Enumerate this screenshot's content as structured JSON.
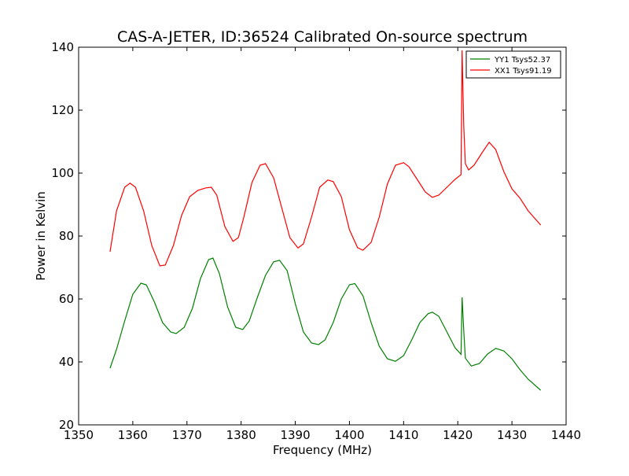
{
  "chart_data": {
    "type": "line",
    "title": "CAS-A-JETER, ID:36524 Calibrated On-source spectrum",
    "xlabel": "Frequency (MHz)",
    "ylabel": "Power in Kelvin",
    "xlim": [
      1350,
      1440
    ],
    "ylim": [
      20,
      140
    ],
    "xticks": [
      "1350",
      "1360",
      "1370",
      "1380",
      "1390",
      "1400",
      "1410",
      "1420",
      "1430",
      "1440"
    ],
    "yticks": [
      "20",
      "40",
      "60",
      "80",
      "100",
      "120",
      "140"
    ],
    "grid": false,
    "legend_position": "top-right",
    "series": [
      {
        "name": "YY1 Tsys52.37",
        "color": "#008000",
        "x": [
          1355.8,
          1357,
          1358.5,
          1360,
          1361.5,
          1362.5,
          1364,
          1365.5,
          1367,
          1368,
          1369.5,
          1371,
          1372.5,
          1374,
          1374.8,
          1376,
          1377.5,
          1379,
          1380.3,
          1381.5,
          1383,
          1384.5,
          1386,
          1387.1,
          1388.5,
          1390,
          1391.5,
          1393,
          1394.3,
          1395.5,
          1397,
          1398.5,
          1400,
          1401,
          1402.5,
          1404,
          1405.5,
          1407,
          1408.5,
          1410,
          1411.5,
          1413,
          1414.5,
          1415.3,
          1416.5,
          1418,
          1419.5,
          1420.6,
          1420.8,
          1421.1,
          1421.4,
          1422.5,
          1424,
          1425.5,
          1427,
          1428.5,
          1430,
          1431.5,
          1433,
          1435.3
        ],
        "y": [
          38,
          44,
          53,
          61.5,
          65,
          64.5,
          59,
          52.5,
          49.5,
          49,
          51,
          57,
          66.5,
          72.5,
          73,
          68,
          57.5,
          51,
          50.3,
          53,
          60.5,
          67.5,
          71.8,
          72.3,
          69,
          58.5,
          49.5,
          46,
          45.5,
          47,
          52.5,
          60,
          64.5,
          64.9,
          61,
          52.5,
          45,
          41,
          40.2,
          42,
          47,
          52.5,
          55.3,
          55.8,
          54.5,
          49.5,
          44.5,
          42.4,
          60.5,
          50,
          41.2,
          38.7,
          39.5,
          42.5,
          44.3,
          43.5,
          41,
          37.5,
          34.5,
          31
        ]
      },
      {
        "name": "XX1 Tsys91.19",
        "color": "#ff0000",
        "x": [
          1355.8,
          1357,
          1358.5,
          1359.5,
          1360.5,
          1362,
          1363.5,
          1365,
          1366,
          1367.5,
          1369,
          1370.5,
          1372,
          1373.5,
          1374.5,
          1375.5,
          1377,
          1378.5,
          1379.5,
          1380.5,
          1382,
          1383.5,
          1384.5,
          1386,
          1387.5,
          1389,
          1390.5,
          1391.5,
          1393,
          1394.5,
          1396,
          1397,
          1398.5,
          1400,
          1401.5,
          1402.5,
          1404,
          1405.5,
          1407,
          1408.5,
          1410,
          1411,
          1412.5,
          1414,
          1415.3,
          1416.5,
          1418,
          1419.5,
          1420.6,
          1420.8,
          1421.1,
          1421.4,
          1422,
          1423,
          1424.5,
          1425.8,
          1427,
          1428.5,
          1430,
          1431.5,
          1433,
          1435.3
        ],
        "y": [
          75,
          88,
          95.5,
          96.8,
          95.5,
          88,
          77,
          70.5,
          70.8,
          77,
          86.5,
          92.5,
          94.5,
          95.3,
          95.5,
          93,
          83,
          78.3,
          79.5,
          86,
          97,
          102.5,
          103,
          98.5,
          89,
          79.5,
          76.2,
          77.5,
          86,
          95.5,
          97.8,
          97.3,
          92.5,
          82,
          76.3,
          75.5,
          78,
          86,
          96.5,
          102.5,
          103.3,
          102,
          98,
          94,
          92.3,
          93,
          95.5,
          98,
          99.5,
          139,
          115,
          103,
          101,
          102.5,
          106.5,
          109.8,
          107.5,
          100.5,
          95,
          92,
          88,
          83.5
        ]
      }
    ]
  }
}
